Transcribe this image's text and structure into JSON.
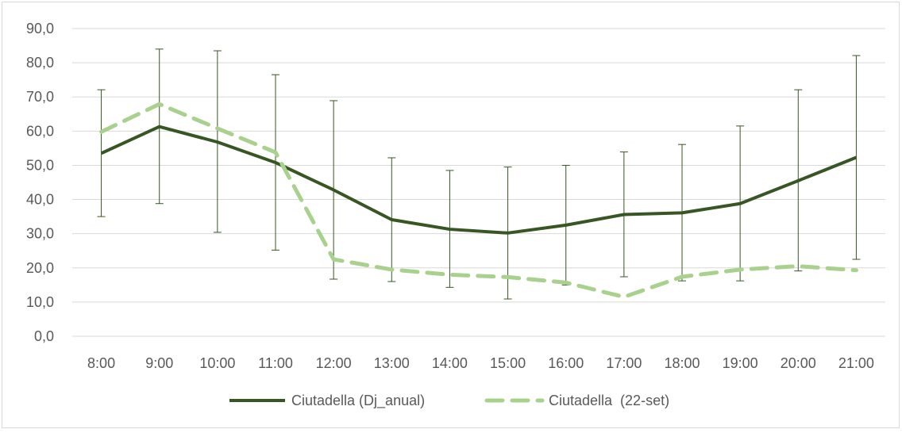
{
  "chart_data": {
    "type": "line",
    "categories": [
      "8:00",
      "9:00",
      "10:00",
      "11:00",
      "12:00",
      "13:00",
      "14:00",
      "15:00",
      "16:00",
      "17:00",
      "18:00",
      "19:00",
      "20:00",
      "21:00"
    ],
    "ylim": [
      0,
      90
    ],
    "yticks": [
      "0,0",
      "10,0",
      "20,0",
      "30,0",
      "40,0",
      "50,0",
      "60,0",
      "70,0",
      "80,0",
      "90,0"
    ],
    "grid": true,
    "legend_position": "bottom",
    "series": [
      {
        "name": "Ciutadella (Dj_anual)",
        "color": "#375623",
        "style": "solid",
        "values": [
          53.5,
          61.3,
          56.8,
          50.8,
          42.8,
          34.1,
          31.3,
          30.2,
          32.5,
          35.6,
          36.1,
          38.8,
          45.5,
          52.3
        ],
        "error_low": [
          35.0,
          38.8,
          30.4,
          25.2,
          16.7,
          16.0,
          14.3,
          10.9,
          15.0,
          17.4,
          16.2,
          16.2,
          19.1,
          22.5
        ],
        "error_high": [
          72.1,
          84.0,
          83.5,
          76.5,
          68.9,
          52.2,
          48.5,
          49.5,
          50.0,
          53.9,
          56.1,
          61.5,
          72.1,
          82.1
        ]
      },
      {
        "name": "Ciutadella  (22-set)",
        "color": "#a9d18e",
        "style": "dashed",
        "values": [
          59.8,
          67.9,
          60.8,
          53.8,
          22.5,
          19.5,
          18.0,
          17.3,
          15.7,
          11.5,
          17.4,
          19.5,
          20.5,
          19.3
        ]
      }
    ]
  }
}
